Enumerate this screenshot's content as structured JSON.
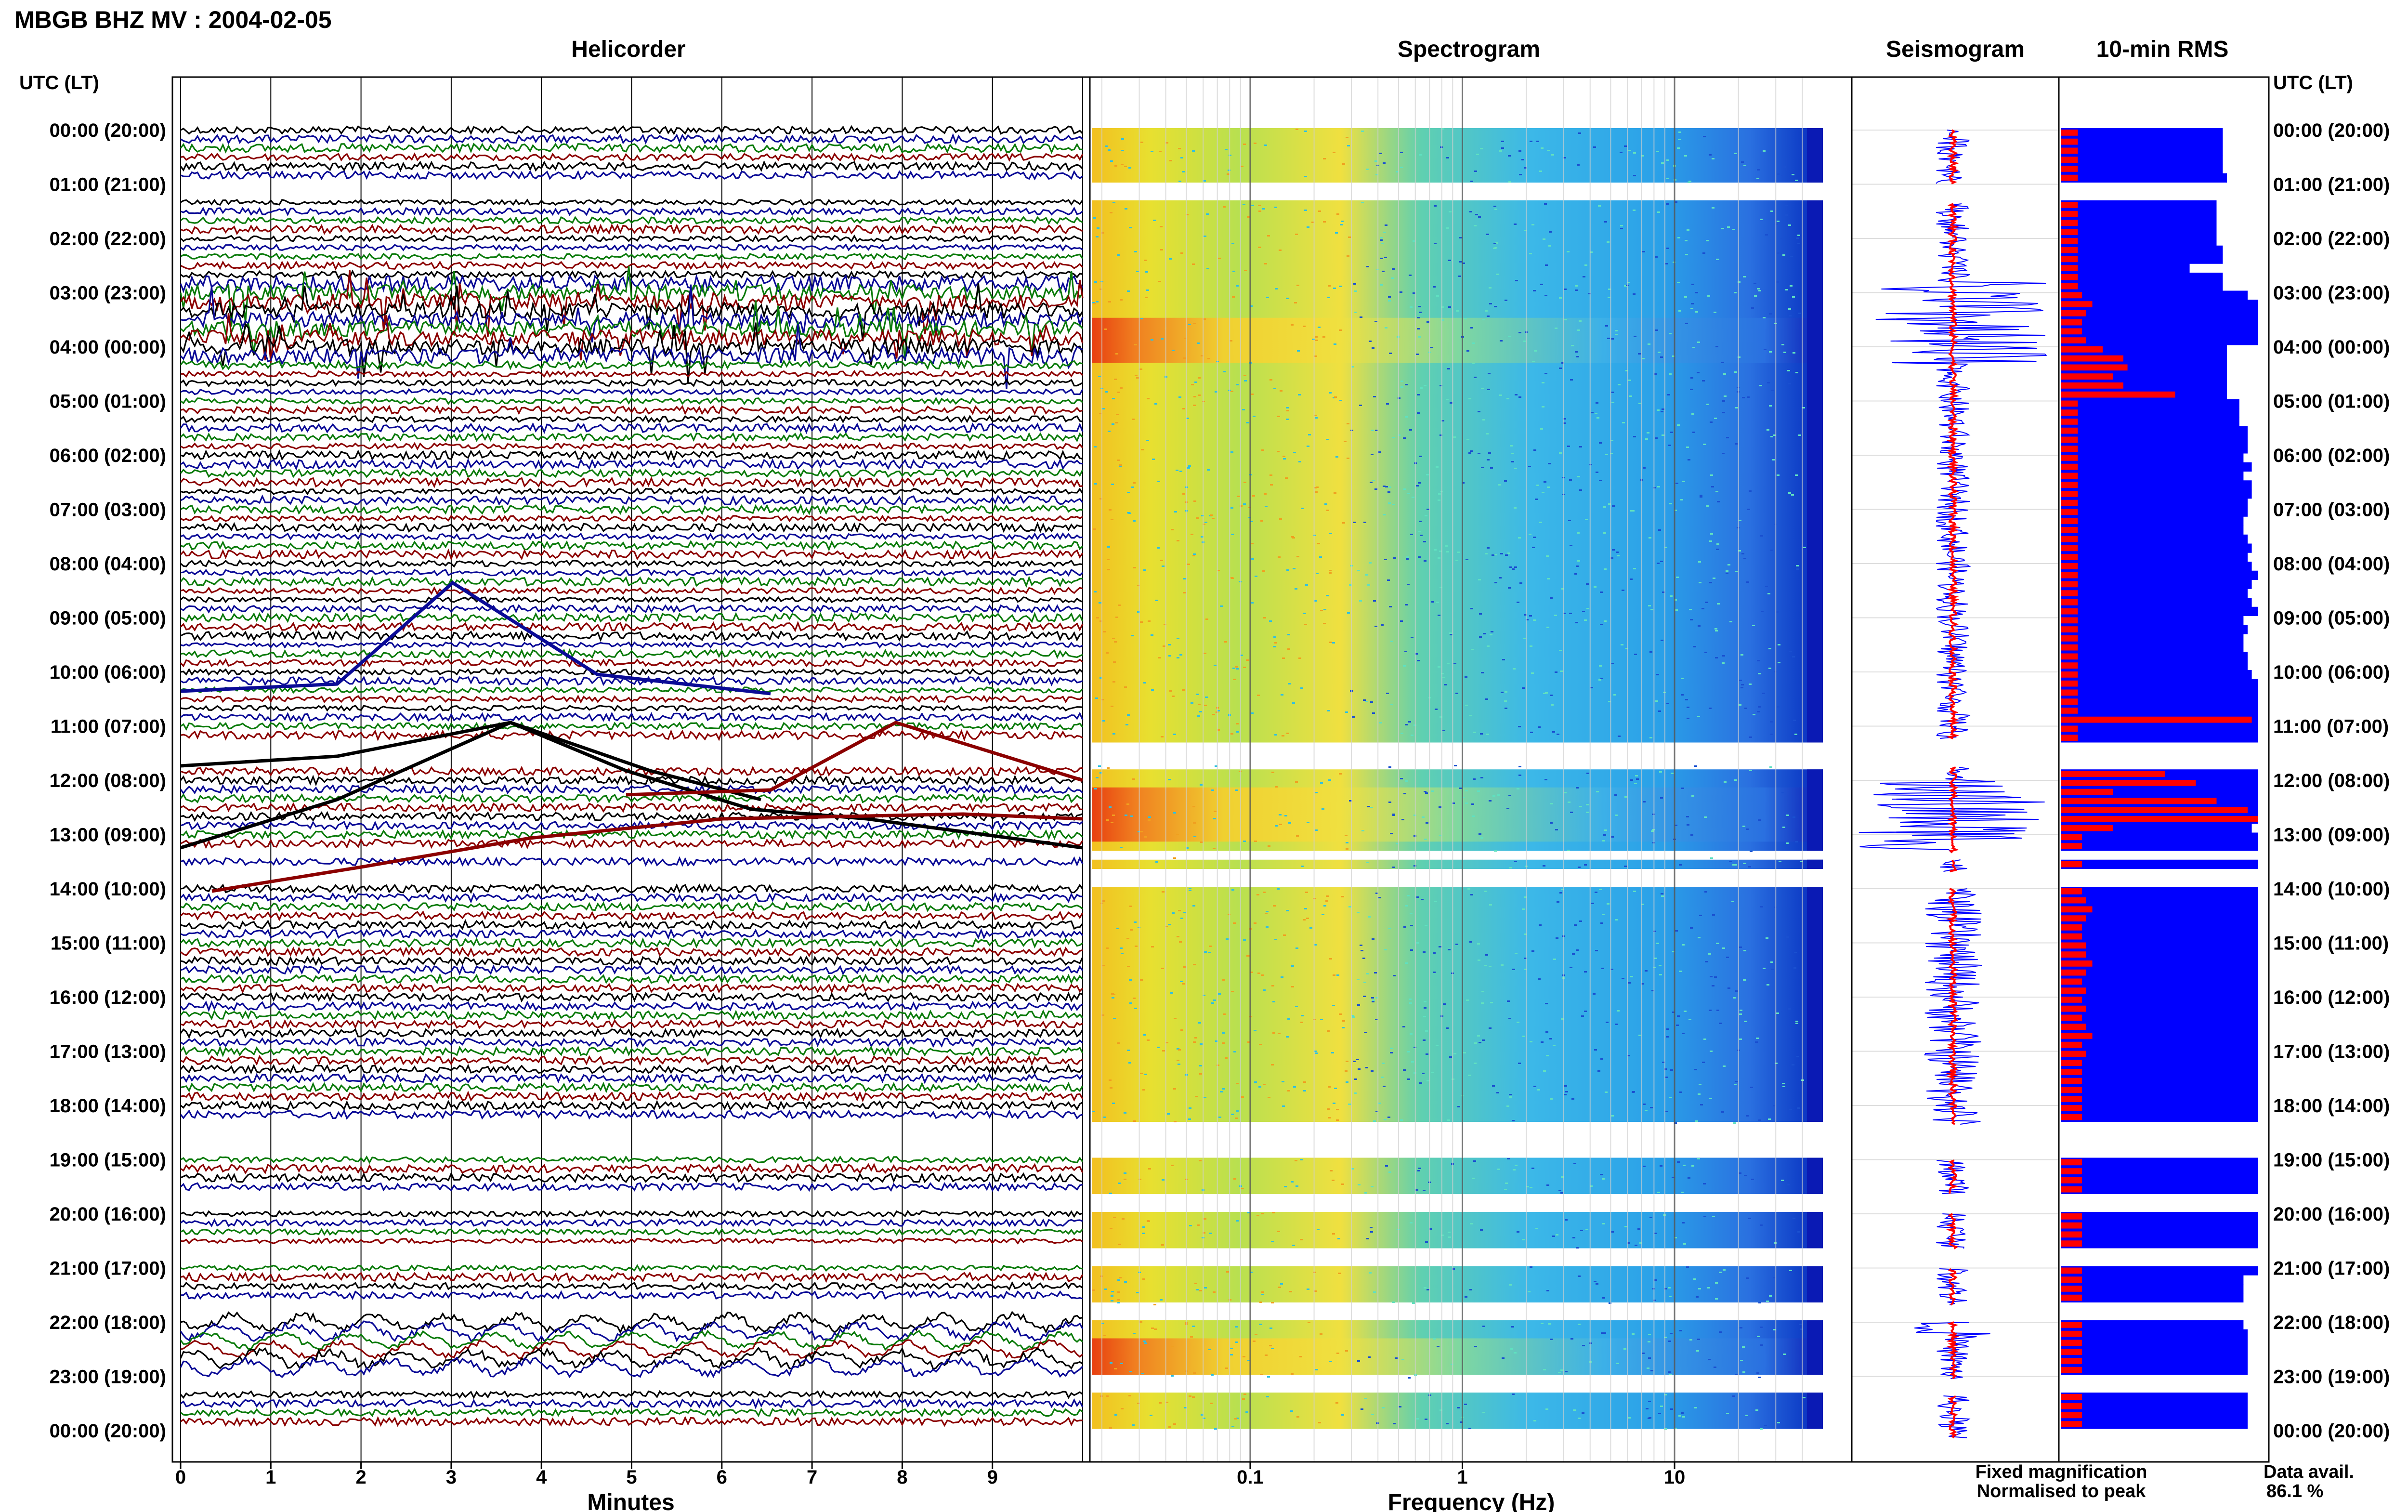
{
  "title": "MBGB BHZ MV : 2004-02-05",
  "panel_titles": {
    "helicorder": "Helicorder",
    "spectrogram": "Spectrogram",
    "seismogram": "Seismogram",
    "rms": "10-min RMS"
  },
  "time_axis_header": "UTC (LT)",
  "time_labels": [
    "00:00 (20:00)",
    "01:00 (21:00)",
    "02:00 (22:00)",
    "03:00 (23:00)",
    "04:00 (00:00)",
    "05:00 (01:00)",
    "06:00 (02:00)",
    "07:00 (03:00)",
    "08:00 (04:00)",
    "09:00 (05:00)",
    "10:00 (06:00)",
    "11:00 (07:00)",
    "12:00 (08:00)",
    "13:00 (09:00)",
    "14:00 (10:00)",
    "15:00 (11:00)",
    "16:00 (12:00)",
    "17:00 (13:00)",
    "18:00 (14:00)",
    "19:00 (15:00)",
    "20:00 (16:00)",
    "21:00 (17:00)",
    "22:00 (18:00)",
    "23:00 (19:00)",
    "00:00 (20:00)"
  ],
  "helicorder_xlabel": "Minutes",
  "helicorder_xticks": [
    "0",
    "1",
    "2",
    "3",
    "4",
    "5",
    "6",
    "7",
    "8",
    "9"
  ],
  "spectrogram_xlabel": "Frequency (Hz)",
  "spectrogram_xticks": [
    "0.1",
    "1",
    "10"
  ],
  "legend": {
    "fixed": "Fixed magnification",
    "normalised": "Normalised to peak",
    "fixed_color": "#0000ff",
    "normalised_color": "#ff0000"
  },
  "data_avail_label": "Data avail.",
  "data_avail_value": "86.1 %",
  "colors": {
    "trace_cycle": [
      "#000000",
      "#0a0a96",
      "#0a7a0a",
      "#8b0000"
    ],
    "rms_bar": "#0000ff",
    "rms_peak": "#ff0000",
    "spectrogram_edge": "#0a1ab4"
  },
  "chart_data": {
    "type": "heatmap",
    "hours_utc": [
      0,
      1,
      2,
      3,
      4,
      5,
      6,
      7,
      8,
      9,
      10,
      11,
      12,
      13,
      14,
      15,
      16,
      17,
      18,
      19,
      20,
      21,
      22,
      23
    ],
    "data_gaps_hours": [
      [
        1.0,
        1.35
      ],
      [
        11.25,
        11.75
      ],
      [
        13.35,
        13.45
      ],
      [
        13.7,
        14.0
      ],
      [
        18.35,
        19.0
      ],
      [
        19.65,
        20.0
      ],
      [
        20.65,
        21.0
      ],
      [
        21.7,
        22.0
      ],
      [
        23.05,
        23.35
      ]
    ],
    "rms_10min_fixed_approx": [
      0.78,
      0.78,
      0.78,
      0.78,
      0.78,
      0.8,
      0.75,
      0.75,
      0.75,
      0.75,
      0.75,
      0.75,
      0.75,
      0.78,
      0.78,
      0.62,
      0.78,
      0.78,
      0.9,
      0.95,
      0.95,
      0.95,
      0.95,
      0.95,
      0.8,
      0.8,
      0.8,
      0.8,
      0.8,
      0.8,
      0.86,
      0.86,
      0.86,
      0.9,
      0.9,
      0.9,
      0.88,
      0.92,
      0.88,
      0.92,
      0.92,
      0.9,
      0.9,
      0.88,
      0.88,
      0.9,
      0.92,
      0.9,
      0.92,
      0.95,
      0.92,
      0.9,
      0.92,
      0.95,
      0.88,
      0.9,
      0.88,
      0.88,
      0.9,
      0.9,
      0.92,
      0.95,
      0.95,
      0.95,
      0.95,
      0.95,
      0.95,
      0.95,
      0.95,
      0.95,
      0.95,
      0.95,
      0.95,
      0.95,
      0.95,
      0.95,
      0.95,
      0.92,
      0.95,
      0.95,
      0.95,
      0.95,
      0.95,
      0.95,
      0.95,
      0.95,
      0.95,
      0.95,
      0.95,
      0.95,
      0.95,
      0.95,
      0.95,
      0.95,
      0.95,
      0.95,
      0.95,
      0.95,
      0.95,
      0.95,
      0.95,
      0.95,
      0.95,
      0.95,
      0.95,
      0.95,
      0.95,
      0.95,
      0.95,
      0.95,
      0.95,
      0.95,
      0.95,
      0.95,
      0.95,
      0.95,
      0.95,
      0.95,
      0.95,
      0.95,
      0.95,
      0.95,
      0.95,
      0.95,
      0.95,
      0.95,
      0.95,
      0.88,
      0.88,
      0.88,
      0.88,
      0.88,
      0.88
    ],
    "rms_10min_normalised_approx": [
      0.08,
      0.08,
      0.08,
      0.08,
      0.08,
      0.08,
      0.08,
      0.08,
      0.08,
      0.08,
      0.08,
      0.08,
      0.08,
      0.08,
      0.08,
      0.08,
      0.08,
      0.08,
      0.1,
      0.15,
      0.12,
      0.1,
      0.1,
      0.12,
      0.2,
      0.3,
      0.32,
      0.25,
      0.3,
      0.55,
      0.08,
      0.08,
      0.08,
      0.08,
      0.08,
      0.08,
      0.08,
      0.08,
      0.08,
      0.08,
      0.08,
      0.08,
      0.08,
      0.08,
      0.08,
      0.08,
      0.08,
      0.08,
      0.08,
      0.08,
      0.08,
      0.08,
      0.08,
      0.08,
      0.08,
      0.08,
      0.08,
      0.08,
      0.08,
      0.08,
      0.08,
      0.08,
      0.08,
      0.08,
      0.08,
      0.92,
      0.08,
      0.08,
      0.08,
      0.08,
      0.15,
      0.5,
      0.65,
      0.25,
      0.75,
      0.9,
      0.95,
      0.25,
      0.1,
      0.1,
      0.1,
      0.1,
      0.12,
      0.1,
      0.1,
      0.12,
      0.15,
      0.12,
      0.1,
      0.1,
      0.12,
      0.12,
      0.15,
      0.12,
      0.1,
      0.12,
      0.1,
      0.12,
      0.1,
      0.12,
      0.15,
      0.1,
      0.12,
      0.1,
      0.1,
      0.1,
      0.1,
      0.1,
      0.1,
      0.1,
      0.1,
      0.1,
      0.1,
      0.1,
      0.1,
      0.1,
      0.1,
      0.1,
      0.1,
      0.1,
      0.1,
      0.1,
      0.1,
      0.1,
      0.1,
      0.1,
      0.1,
      0.1,
      0.1,
      0.1,
      0.1,
      0.1,
      0.1
    ]
  }
}
